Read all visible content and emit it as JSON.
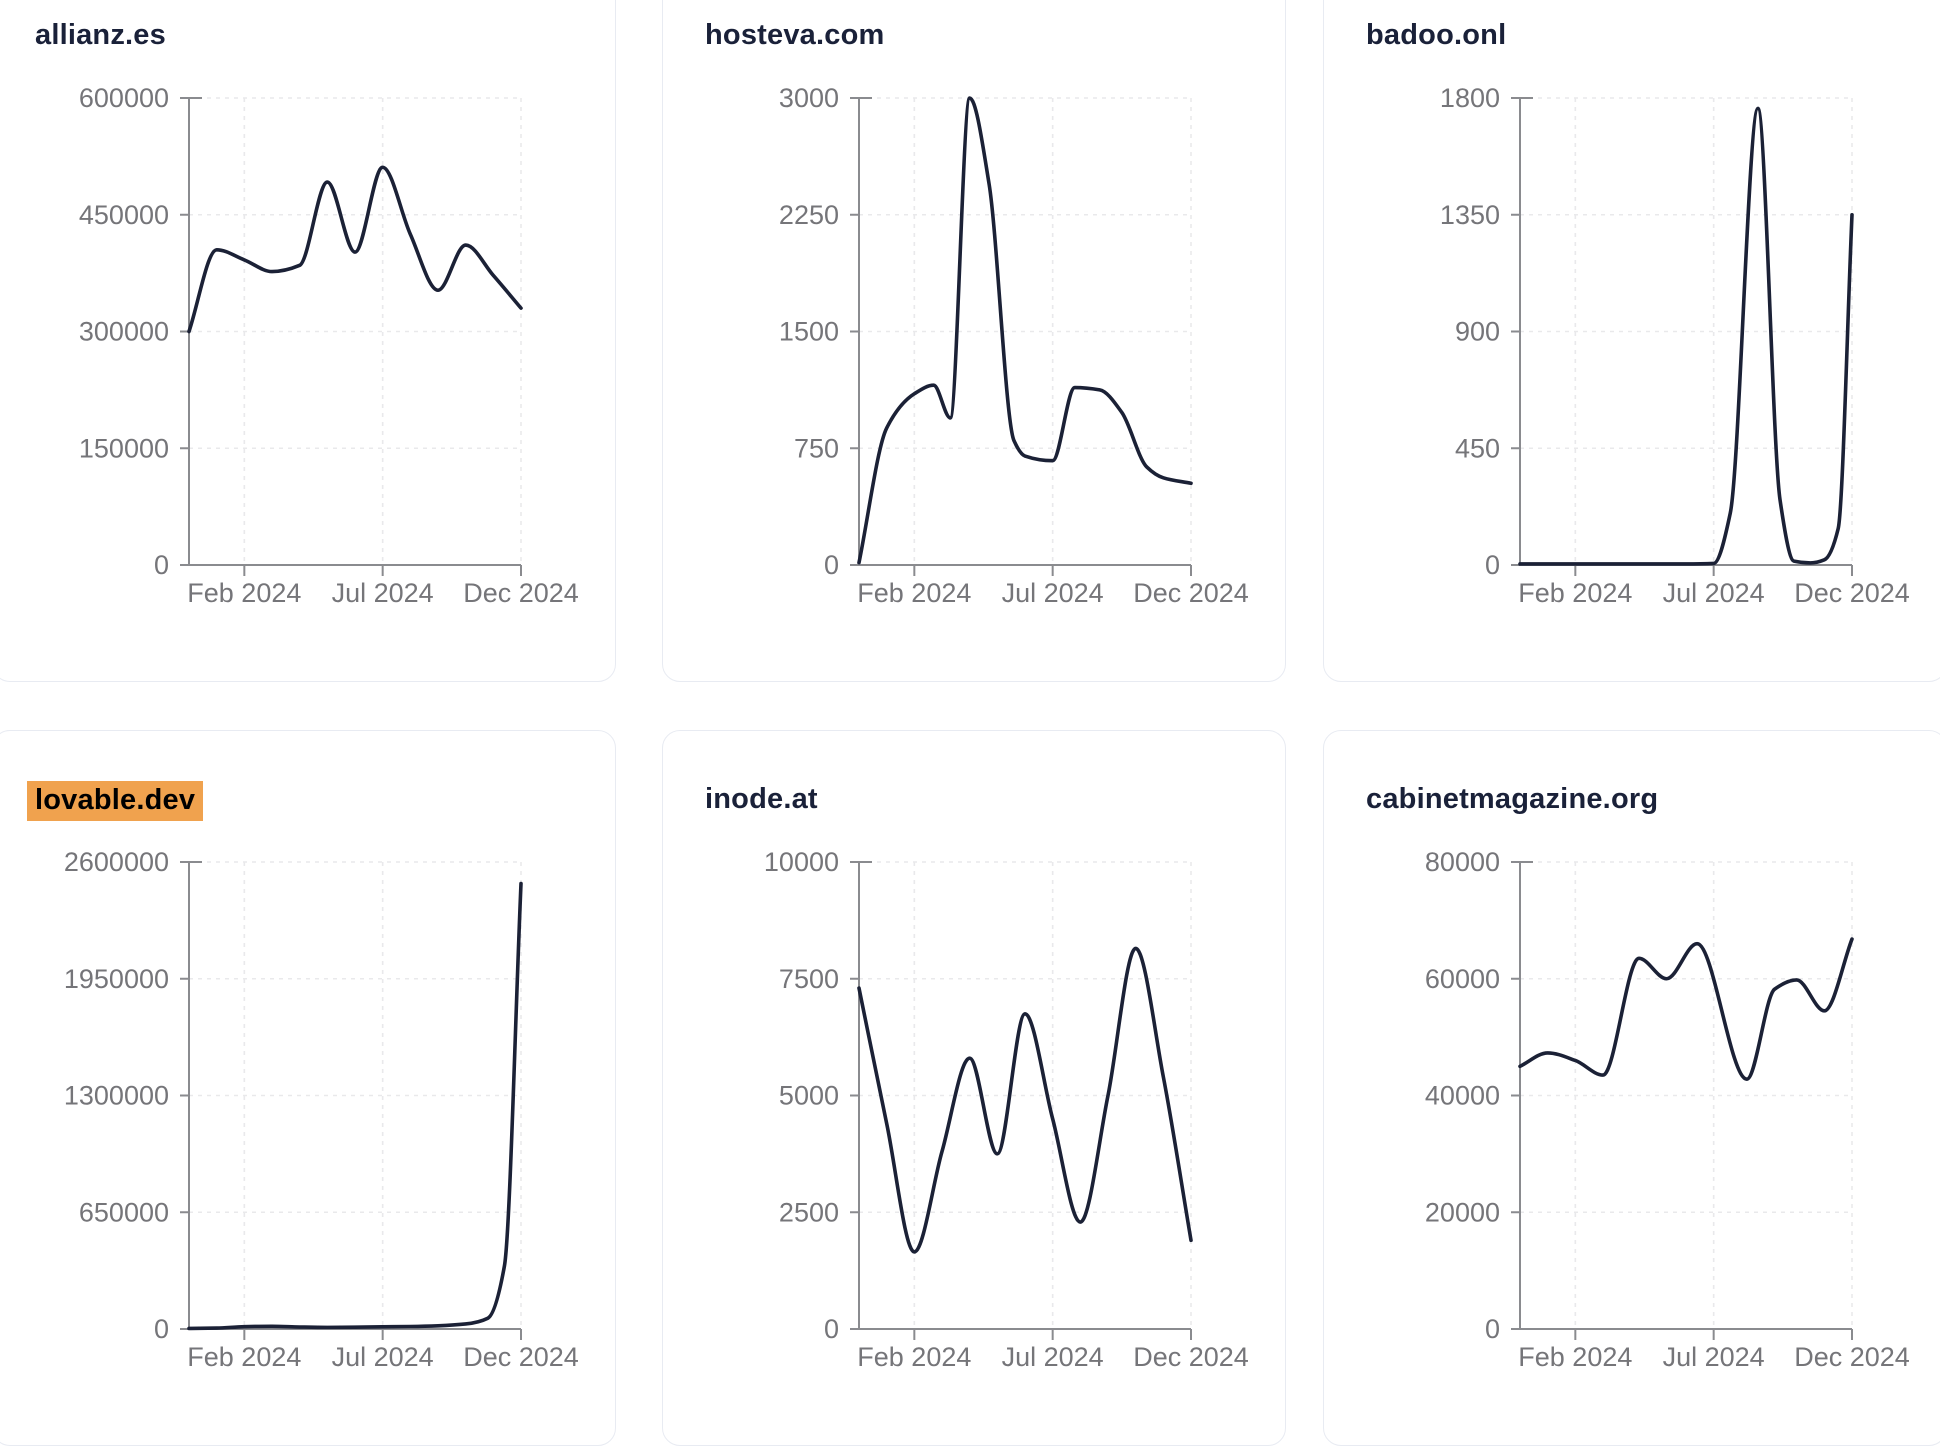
{
  "page": {
    "background": "#ffffff"
  },
  "style": {
    "line_color": "#1b2136",
    "title_color": "#1a2139",
    "tick_color": "#757579",
    "axis_color": "#8a8b8f",
    "grid_color": "#e9e9eb",
    "card_border": "#e8ebf2",
    "card_bg": "#ffffff",
    "highlight_color": "#f0a24e",
    "highlight_text_color": "#000000"
  },
  "x_axis": {
    "tick_labels": [
      "Feb 2024",
      "Jul 2024",
      "Dec 2024"
    ],
    "tick_months": [
      2,
      7,
      12
    ],
    "range_months": [
      0,
      12
    ],
    "grid": true
  },
  "chart_data": [
    {
      "type": "line",
      "title": "allianz.es",
      "highlighted": false,
      "ylim": [
        0,
        600000
      ],
      "y_max": 600000,
      "y_ticks": [
        0,
        150000,
        300000,
        450000,
        600000
      ],
      "x_unit": "months, 0 = start (Dec 2023) .. 12 = Dec 2024",
      "points": [
        [
          0,
          300000
        ],
        [
          1,
          405000
        ],
        [
          2,
          392000
        ],
        [
          3,
          377000
        ],
        [
          4,
          385000
        ],
        [
          5,
          492000
        ],
        [
          6,
          402000
        ],
        [
          7,
          511000
        ],
        [
          8,
          425000
        ],
        [
          9,
          353000
        ],
        [
          10,
          411000
        ],
        [
          11,
          372000
        ],
        [
          12,
          330000
        ]
      ]
    },
    {
      "type": "line",
      "title": "hosteva.com",
      "highlighted": false,
      "ylim": [
        0,
        3000
      ],
      "y_max": 3000,
      "y_ticks": [
        0,
        750,
        1500,
        2250,
        3000
      ],
      "x_unit": "months, 0 = start (Dec 2023) .. 12 = Dec 2024",
      "points": [
        [
          0,
          15
        ],
        [
          1,
          880
        ],
        [
          2,
          1100
        ],
        [
          2.7,
          1155
        ],
        [
          3.3,
          945
        ],
        [
          4,
          3000
        ],
        [
          4.7,
          2450
        ],
        [
          5.6,
          800
        ],
        [
          6,
          700
        ],
        [
          7,
          670
        ],
        [
          7.8,
          1140
        ],
        [
          8.7,
          1125
        ],
        [
          9.5,
          980
        ],
        [
          10.4,
          630
        ],
        [
          11,
          560
        ],
        [
          12,
          525
        ]
      ]
    },
    {
      "type": "line",
      "title": "badoo.onl",
      "highlighted": false,
      "ylim": [
        0,
        1800
      ],
      "y_max": 1800,
      "y_ticks": [
        0,
        450,
        900,
        1350,
        1800
      ],
      "x_unit": "months, 0 = start (Dec 2023) .. 12 = Dec 2024",
      "points": [
        [
          0,
          4
        ],
        [
          1,
          4
        ],
        [
          2,
          4
        ],
        [
          3,
          4
        ],
        [
          4,
          4
        ],
        [
          5,
          4
        ],
        [
          6,
          4
        ],
        [
          7,
          6
        ],
        [
          7.6,
          200
        ],
        [
          8.6,
          1760
        ],
        [
          9.4,
          250
        ],
        [
          9.9,
          15
        ],
        [
          10.5,
          8
        ],
        [
          11,
          20
        ],
        [
          11.5,
          140
        ],
        [
          12,
          1350
        ]
      ]
    },
    {
      "type": "line",
      "title": "lovable.dev",
      "highlighted": true,
      "ylim": [
        0,
        2600000
      ],
      "y_max": 2600000,
      "y_ticks": [
        0,
        650000,
        1300000,
        1950000,
        2600000
      ],
      "x_unit": "months, 0 = start (Dec 2023) .. 12 = Dec 2024",
      "points": [
        [
          0,
          3000
        ],
        [
          1,
          5000
        ],
        [
          2,
          13000
        ],
        [
          3,
          15000
        ],
        [
          4,
          11000
        ],
        [
          5,
          9000
        ],
        [
          6,
          10000
        ],
        [
          7,
          12000
        ],
        [
          8,
          14000
        ],
        [
          9,
          18000
        ],
        [
          10,
          28000
        ],
        [
          10.8,
          60000
        ],
        [
          11.4,
          350000
        ],
        [
          12,
          2480000
        ]
      ]
    },
    {
      "type": "line",
      "title": "inode.at",
      "highlighted": false,
      "ylim": [
        0,
        10000
      ],
      "y_max": 10000,
      "y_ticks": [
        0,
        2500,
        5000,
        7500,
        10000
      ],
      "x_unit": "months, 0 = start (Dec 2023) .. 12 = Dec 2024",
      "points": [
        [
          0,
          7300
        ],
        [
          1,
          4400
        ],
        [
          2,
          1650
        ],
        [
          3,
          3800
        ],
        [
          4,
          5800
        ],
        [
          5,
          3750
        ],
        [
          6,
          6750
        ],
        [
          7,
          4500
        ],
        [
          8,
          2290
        ],
        [
          9,
          5000
        ],
        [
          10,
          8150
        ],
        [
          11,
          5400
        ],
        [
          12,
          1900
        ]
      ]
    },
    {
      "type": "line",
      "title": "cabinetmagazine.org",
      "highlighted": false,
      "ylim": [
        0,
        80000
      ],
      "y_max": 80000,
      "y_ticks": [
        0,
        20000,
        40000,
        60000,
        80000
      ],
      "x_unit": "months, 0 = start (Dec 2023) .. 12 = Dec 2024",
      "points": [
        [
          0,
          45000
        ],
        [
          1,
          47300
        ],
        [
          2,
          46000
        ],
        [
          3,
          43500
        ],
        [
          4.3,
          63500
        ],
        [
          5.3,
          60000
        ],
        [
          6.4,
          66000
        ],
        [
          8.2,
          42800
        ],
        [
          9.2,
          58200
        ],
        [
          10,
          59800
        ],
        [
          11,
          54500
        ],
        [
          12,
          66800
        ]
      ]
    }
  ]
}
